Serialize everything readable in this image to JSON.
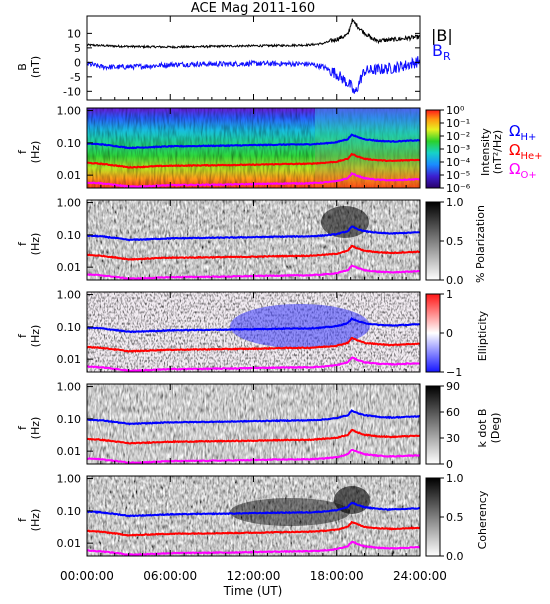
{
  "title": "ACE Mag 2011-160",
  "xaxis": {
    "label": "Time (UT)",
    "ticks": [
      "00:00:00",
      "06:00:00",
      "12:00:00",
      "18:00:00",
      "24:00:00"
    ]
  },
  "legend": {
    "b_mag": "|B|",
    "b_r_main": "B",
    "b_r_sub": "R",
    "h_main": "Ω",
    "h_sub": "H+",
    "he_main": "Ω",
    "he_sub": "He+",
    "o_main": "Ω",
    "o_sub": "O+"
  },
  "colors": {
    "b_mag": "#000000",
    "b_r": "#1010ff",
    "h_plus": "#0000ff",
    "he_plus": "#ff0000",
    "o_plus": "#ff00ff"
  },
  "panels": {
    "mag": {
      "ylabel_top": "B",
      "ylabel_bottom": "(nT)",
      "yticks": [
        "10",
        "5",
        "0",
        "-5",
        "-10"
      ]
    },
    "intensity": {
      "ylabel_top": "f",
      "ylabel_bottom": "(Hz)",
      "yticks": [
        "1.00",
        "0.10",
        "0.01"
      ],
      "cbar_ticks": [
        "10⁰",
        "10⁻¹",
        "10⁻²",
        "10⁻³",
        "10⁻⁴",
        "10⁻⁵",
        "10⁻⁶"
      ],
      "cbar_label_1": "Intensity",
      "cbar_label_2": "(nT²/Hz)"
    },
    "polarization": {
      "ylabel_top": "f",
      "ylabel_bottom": "(Hz)",
      "yticks": [
        "1.00",
        "0.10",
        "0.01"
      ],
      "cbar_ticks": [
        "1.0",
        "0.5",
        "0.0"
      ],
      "cbar_label_1": "% Polarization"
    },
    "ellipticity": {
      "ylabel_top": "f",
      "ylabel_bottom": "(Hz)",
      "yticks": [
        "1.00",
        "0.10",
        "0.01"
      ],
      "cbar_ticks": [
        "1",
        "0",
        "−1"
      ],
      "cbar_label_1": "Ellipticity"
    },
    "kdotb": {
      "ylabel_top": "f",
      "ylabel_bottom": "(Hz)",
      "yticks": [
        "1.00",
        "0.10",
        "0.01"
      ],
      "cbar_ticks": [
        "90",
        "60",
        "30",
        "0"
      ],
      "cbar_label_1": "k dot B",
      "cbar_label_2": "(Deg)"
    },
    "coherency": {
      "ylabel_top": "f",
      "ylabel_bottom": "(Hz)",
      "yticks": [
        "1.00",
        "0.10",
        "0.01"
      ],
      "cbar_ticks": [
        "1.0",
        "0.5",
        "0.0"
      ],
      "cbar_label_1": "Coherency"
    }
  },
  "chart_data": [
    {
      "type": "line",
      "panel": "magnetic field",
      "x_unit": "hours UT",
      "xlim": [
        0,
        24
      ],
      "ylim": [
        -13,
        16
      ],
      "series": [
        {
          "name": "|B|",
          "x": [
            0,
            2,
            4,
            6,
            8,
            10,
            12,
            14,
            16,
            17,
            18,
            18.8,
            19.1,
            19.4,
            19.8,
            20.2,
            20.6,
            21,
            22,
            23,
            24
          ],
          "values": [
            6.0,
            5.6,
            5.4,
            5.3,
            5.4,
            5.6,
            5.7,
            5.8,
            6.0,
            6.5,
            8.0,
            9.5,
            14.5,
            13.0,
            11.0,
            9.5,
            8.0,
            7.5,
            7.8,
            8.3,
            8.8
          ]
        },
        {
          "name": "B_R",
          "x": [
            0,
            1,
            2,
            4,
            6,
            8,
            10,
            12,
            14,
            16,
            17,
            18,
            18.5,
            19,
            19.3,
            19.7,
            20,
            21,
            22,
            23,
            24
          ],
          "values": [
            -0.5,
            -1.5,
            -1.7,
            -1.4,
            -0.8,
            -0.6,
            -0.6,
            -0.4,
            -0.5,
            -0.6,
            -1.5,
            -4.0,
            -6.0,
            -8.0,
            -11.0,
            -6.0,
            -3.0,
            -2.5,
            -2.0,
            -1.0,
            0.5
          ]
        }
      ]
    },
    {
      "type": "heatmap",
      "panel": "spectral intensity / polarization / ellipticity / k dot B / coherency",
      "x_unit": "hours UT",
      "xlim": [
        0,
        24
      ],
      "ylim_hz": [
        0.004,
        1.2
      ],
      "yscale": "log",
      "gyrofrequency_lines": [
        {
          "name": "Ω H+",
          "x": [
            0,
            1,
            2,
            3,
            4,
            5,
            6,
            8,
            10,
            12,
            14,
            16,
            17,
            18,
            18.8,
            19.1,
            19.5,
            20,
            21,
            22,
            23,
            24
          ],
          "values": [
            0.095,
            0.09,
            0.08,
            0.07,
            0.072,
            0.075,
            0.078,
            0.08,
            0.082,
            0.085,
            0.088,
            0.09,
            0.095,
            0.105,
            0.13,
            0.18,
            0.15,
            0.13,
            0.115,
            0.11,
            0.115,
            0.12
          ]
        },
        {
          "name": "Ω He+",
          "x": [
            0,
            1,
            2,
            3,
            4,
            5,
            6,
            8,
            10,
            12,
            14,
            16,
            17,
            18,
            18.8,
            19.1,
            19.5,
            20,
            21,
            22,
            23,
            24
          ],
          "values": [
            0.024,
            0.0225,
            0.02,
            0.0175,
            0.018,
            0.019,
            0.0195,
            0.02,
            0.0205,
            0.021,
            0.022,
            0.0225,
            0.024,
            0.026,
            0.032,
            0.045,
            0.038,
            0.032,
            0.029,
            0.0275,
            0.029,
            0.03
          ]
        },
        {
          "name": "Ω O+",
          "x": [
            0,
            1,
            2,
            3,
            4,
            5,
            6,
            8,
            10,
            12,
            14,
            16,
            17,
            18,
            18.8,
            19.1,
            19.5,
            20,
            21,
            22,
            23,
            24
          ],
          "values": [
            0.0059,
            0.0056,
            0.005,
            0.0044,
            0.0045,
            0.0047,
            0.0049,
            0.005,
            0.0051,
            0.0053,
            0.0055,
            0.0056,
            0.0059,
            0.0065,
            0.008,
            0.0112,
            0.0095,
            0.008,
            0.0072,
            0.0069,
            0.0072,
            0.0075
          ]
        }
      ]
    }
  ]
}
